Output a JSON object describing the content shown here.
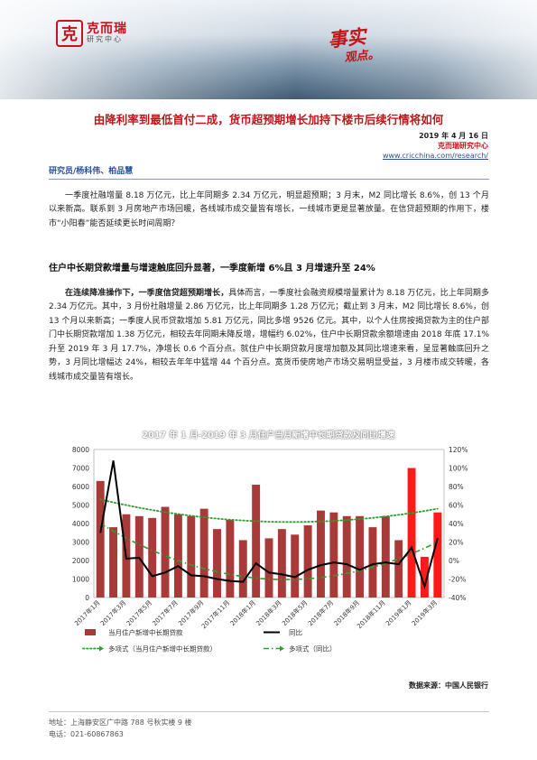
{
  "header": {
    "logo_mark": "克",
    "logo_name": "克而瑞",
    "logo_sub": "研究中心",
    "badge_main": "事实",
    "badge_sub": "观点。"
  },
  "title": "由降利率到最低首付二成，货币超预期增长加持下楼市后续行情将如何",
  "meta": {
    "date": "2019 年 4 月 16 日",
    "org": "克而瑞研究中心",
    "url": "www.cricchina.com/research/"
  },
  "authors": "研究员/杨科伟、柏品慧",
  "paragraph1": "一季度社融增量 8.18 万亿元，比上年同期多 2.34 万亿元，明显超预期；3 月末，M2 同比增长 8.6%，创 13 个月以来新高。联系到 3 月房地产市场回暖，各线城市成交量皆有增长，一线城市更是显著放量。在信贷超预期的作用下，楼市“小阳春”能否延续更长时间周期？",
  "subheading": "住户中长期贷款增量与增速触底回升显著，一季度新增 6%且 3 月增速升至 24%",
  "paragraph2": {
    "lead": "在连续降准操作下，一季度信贷超预期增长，",
    "body": "具体而言，一季度社会融资规模增量累计为 8.18 万亿元，比上年同期多 2.34 万亿元。其中，3 月份社融增量 2.86 万亿元，比上年同期多 1.28 万亿元；截止到 3 月末，M2 同比增长 8.6%，创 13 个月以来新高；一季度人民币贷款增加 5.81 万亿元，同比多增 9526 亿元。其中，以个人住房按揭贷款为主的住户部门中长期贷款增加 1.38 万亿元，相较去年同期未降反增，增幅约 6.02%，住户中长期贷款余额增速由 2018 年底 17.1%升至 2019 年 3 月 17.7%，净增长 0.6 个百分点。就住户中长期贷款月度增加额及其同比增速来看，呈显著触底回升之势，3 月同比增幅达 24%，相较去年年中猛增 44 个百分点。宽货币使房地产市场交易明显受益，3 月楼市成交转暖，各线城市成交量皆有增长。"
  },
  "chart_data": {
    "type": "bar",
    "title": "2017 年 1 月-2019 年 3 月住户当月新增中长期贷款及同比增速",
    "categories": [
      "2017年1月",
      "2017年2月",
      "2017年3月",
      "2017年4月",
      "2017年5月",
      "2017年6月",
      "2017年7月",
      "2017年8月",
      "2017年9月",
      "2017年10月",
      "2017年11月",
      "2017年12月",
      "2018年1月",
      "2018年2月",
      "2018年3月",
      "2018年4月",
      "2018年5月",
      "2018年6月",
      "2018年7月",
      "2018年8月",
      "2018年9月",
      "2018年10月",
      "2018年11月",
      "2018年12月",
      "2019年1月",
      "2019年2月",
      "2019年3月"
    ],
    "x_tick_labels": [
      "2017年1月",
      "2017年3月",
      "2017年5月",
      "2017年7月",
      "2017年9月",
      "2017年11月",
      "2018年1月",
      "2018年3月",
      "2018年5月",
      "2018年7月",
      "2018年9月",
      "2018年11月",
      "2019年1月",
      "2019年3月"
    ],
    "bar_series": {
      "name": "当月住户新增中长期贷款",
      "values": [
        6300,
        3800,
        4500,
        4400,
        4300,
        4900,
        4500,
        4400,
        4800,
        3700,
        4200,
        3100,
        6100,
        3200,
        3700,
        3400,
        3900,
        4700,
        4600,
        4400,
        4400,
        3800,
        4400,
        3100,
        7000,
        2200,
        4600
      ],
      "color": "#a83a3a",
      "highlight_color": "#ff1a1a",
      "highlight_indices": [
        24,
        25,
        26
      ]
    },
    "line_series": {
      "name": "同比",
      "values": [
        30,
        108,
        2,
        3,
        -17,
        -13,
        -6,
        -16,
        -17,
        -20,
        -22,
        -23,
        -3,
        -13,
        -15,
        -18,
        -10,
        -5,
        -2,
        -4,
        -10,
        -4,
        -2,
        -4,
        14,
        -28,
        24
      ],
      "color": "#000000"
    },
    "trend_series": [
      {
        "name": "多项式（当月住户新增中长期贷款）",
        "values_left_axis_start_end": [
          5300,
          4100,
          4800
        ],
        "color": "#2ca02c"
      },
      {
        "name": "多项式（同比）",
        "values_right_axis_start_end": [
          40,
          -20,
          20
        ],
        "color": "#2ca02c"
      }
    ],
    "left_axis": {
      "min": 0,
      "max": 8000,
      "step": 1000,
      "ticks": [
        "0",
        "1000",
        "2000",
        "3000",
        "4000",
        "5000",
        "6000",
        "7000",
        "8000"
      ]
    },
    "right_axis": {
      "min": -40,
      "max": 120,
      "step": 20,
      "ticks": [
        "-40%",
        "-20%",
        "0%",
        "20%",
        "40%",
        "60%",
        "80%",
        "100%",
        "120%"
      ]
    },
    "legend": [
      {
        "label": "当月住户新增中长期贷款",
        "kind": "bar"
      },
      {
        "label": "同比",
        "kind": "line"
      },
      {
        "label": "多项式（当月住户新增中长期贷款）",
        "kind": "dotted"
      },
      {
        "label": "多项式（同比）",
        "kind": "dashed"
      }
    ],
    "legend_position": "bottom",
    "grid": false
  },
  "source": "数据来源：中国人民银行",
  "footer": {
    "address": "地址：上海静安区广中路 788 号秋实楼 9 楼",
    "phone": "电话：021-60867863"
  }
}
